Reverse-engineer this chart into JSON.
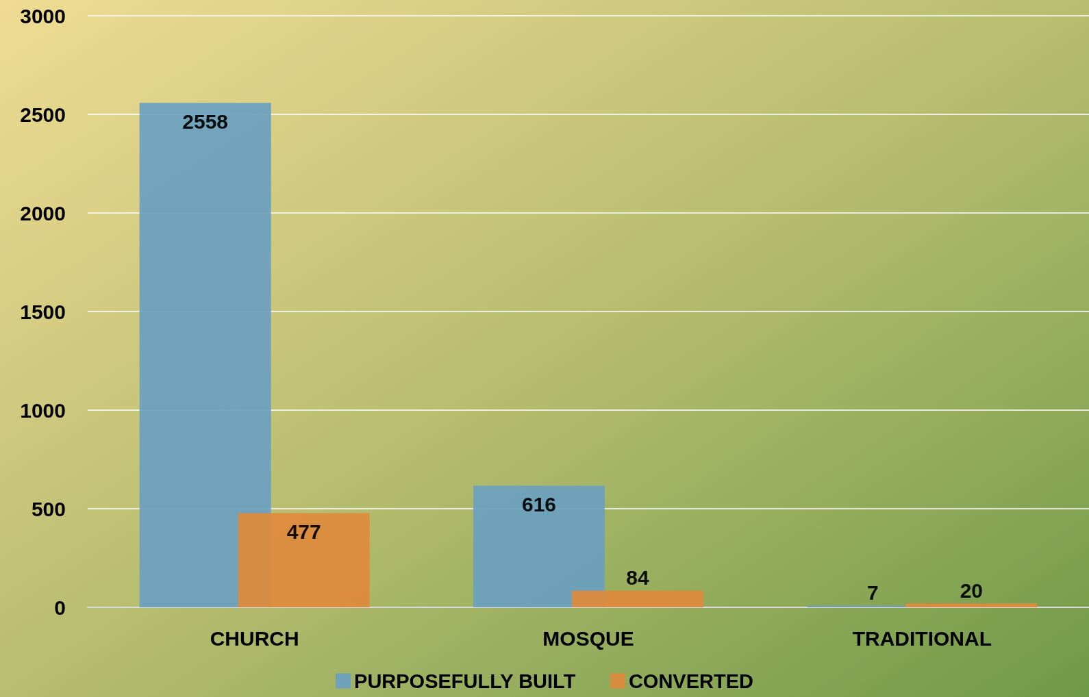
{
  "chart_data": {
    "type": "bar",
    "categories": [
      "CHURCH",
      "MOSQUE",
      "TRADITIONAL"
    ],
    "series": [
      {
        "name": "PURPOSEFULLY BUILT",
        "color": "#6a9fc0",
        "values": [
          2558,
          616,
          7
        ]
      },
      {
        "name": "CONVERTED",
        "color": "#e08a3c",
        "values": [
          477,
          84,
          20
        ]
      }
    ],
    "ylim": [
      0,
      3000
    ],
    "yticks": [
      0,
      500,
      1000,
      1500,
      2000,
      2500,
      3000
    ],
    "grid": "y",
    "legend": "bottom",
    "data_labels": true
  }
}
